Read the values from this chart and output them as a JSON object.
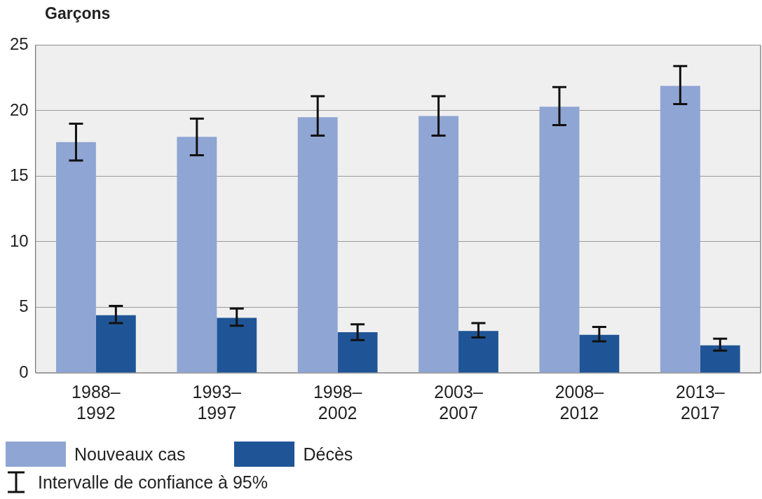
{
  "chart_data": {
    "type": "bar",
    "title": "Garçons",
    "categories": [
      "1988–1992",
      "1993–1997",
      "1998–2002",
      "2003–2007",
      "2008–2012",
      "2013–2017"
    ],
    "series": [
      {
        "name": "Nouveaux cas",
        "color": "#8fa5d3",
        "values": [
          17.6,
          18.0,
          19.5,
          19.6,
          20.3,
          21.9
        ],
        "errors": [
          [
            16.2,
            19.0
          ],
          [
            16.6,
            19.4
          ],
          [
            18.1,
            21.1
          ],
          [
            18.1,
            21.1
          ],
          [
            18.9,
            21.8
          ],
          [
            20.5,
            23.4
          ]
        ]
      },
      {
        "name": "Décès",
        "color": "#1f5596",
        "values": [
          4.4,
          4.2,
          3.1,
          3.2,
          2.9,
          2.1
        ],
        "errors": [
          [
            3.8,
            5.1
          ],
          [
            3.6,
            4.9
          ],
          [
            2.5,
            3.7
          ],
          [
            2.7,
            3.8
          ],
          [
            2.4,
            3.5
          ],
          [
            1.7,
            2.6
          ]
        ]
      }
    ],
    "ylim": [
      0,
      25
    ],
    "yticks": [
      0,
      5,
      10,
      15,
      20,
      25
    ],
    "grid": "y",
    "legend": "bottom",
    "annotations": [
      "Intervalle de confiance à 95%"
    ]
  }
}
